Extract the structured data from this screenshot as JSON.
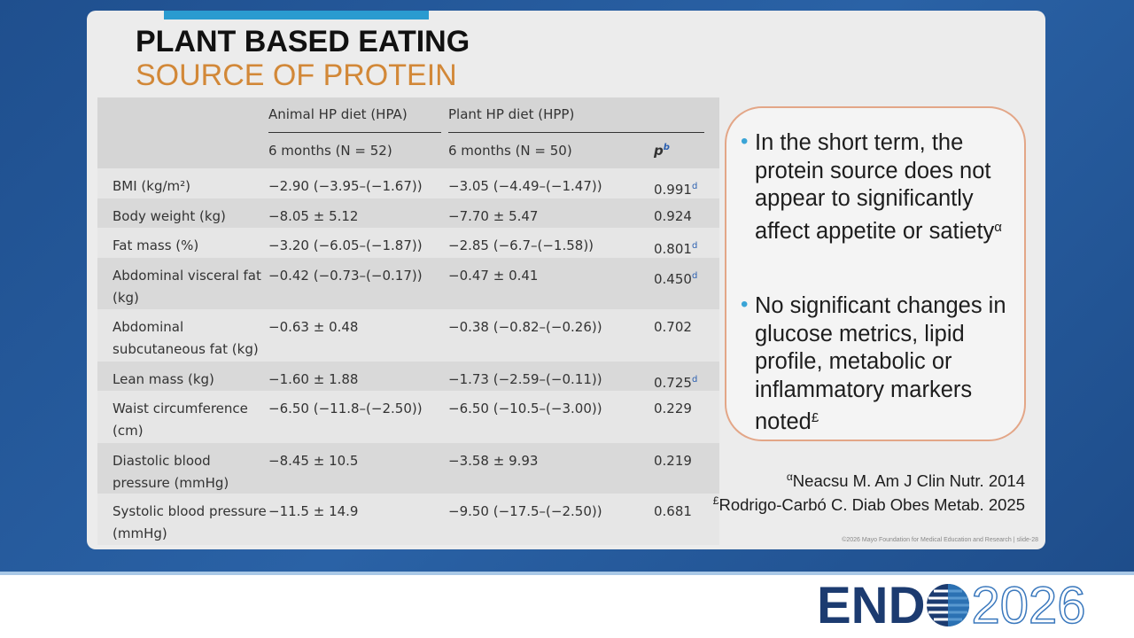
{
  "slide": {
    "title": "PLANT BASED EATING",
    "subtitle": "SOURCE OF PROTEIN",
    "table": {
      "group_headers": [
        "Animal HP diet (HPA)",
        "Plant HP diet (HPP)"
      ],
      "sub_headers": [
        "6 months (N = 52)",
        "6 months (N = 50)"
      ],
      "p_header": {
        "text": "p",
        "note": "b"
      },
      "rows": [
        {
          "label": "BMI (kg/m²)",
          "hpa": "−2.90 (−3.95–(−1.67))",
          "hpp": "−3.05 (−4.49–(−1.47))",
          "p": "0.991",
          "note": "d"
        },
        {
          "label": "Body weight (kg)",
          "hpa": "−8.05 ± 5.12",
          "hpp": "−7.70 ± 5.47",
          "p": "0.924"
        },
        {
          "label": "Fat mass (%)",
          "hpa": "−3.20 (−6.05–(−1.87))",
          "hpp": "−2.85 (−6.7–(−1.58))",
          "p": "0.801",
          "note": "d"
        },
        {
          "label": "Abdominal visceral fat (kg)",
          "hpa": "−0.42 (−0.73–(−0.17))",
          "hpp": "−0.47 ± 0.41",
          "p": "0.450",
          "note": "d"
        },
        {
          "label": "Abdominal subcutaneous fat (kg)",
          "hpa": "−0.63 ± 0.48",
          "hpp": "−0.38 (−0.82–(−0.26))",
          "p": "0.702"
        },
        {
          "label": "Lean mass (kg)",
          "hpa": "−1.60 ± 1.88",
          "hpp": "−1.73 (−2.59–(−0.11))",
          "p": "0.725",
          "note": "d"
        },
        {
          "label": "Waist circumference (cm)",
          "hpa": "−6.50 (−11.8–(−2.50))",
          "hpp": "−6.50 (−10.5–(−3.00))",
          "p": "0.229"
        },
        {
          "label": "Diastolic blood pressure (mmHg)",
          "hpa": "−8.45 ± 10.5",
          "hpp": "−3.58 ± 9.93",
          "p": "0.219"
        },
        {
          "label": "Systolic blood pressure (mmHg)",
          "hpa": "−11.5 ± 14.9",
          "hpp": "−9.50 (−17.5–(−2.50))",
          "p": "0.681"
        }
      ]
    },
    "bullets": [
      {
        "text": "In the short term, the protein source does not appear to significantly affect appetite or satiety",
        "note": "α"
      },
      {
        "text": "No significant changes in glucose metrics, lipid profile, metabolic or inflammatory markers noted",
        "note": "£"
      }
    ],
    "references": [
      {
        "mark": "α",
        "text": "Neacsu M. Am J Clin Nutr. 2014"
      },
      {
        "mark": "£",
        "text": "Rodrigo-Carbó C. Diab Obes Metab. 2025"
      }
    ],
    "footer": "©2026 Mayo Foundation for Medical Education and Research  |  slide-28",
    "logo": {
      "left": "END",
      "right": "2026"
    }
  }
}
